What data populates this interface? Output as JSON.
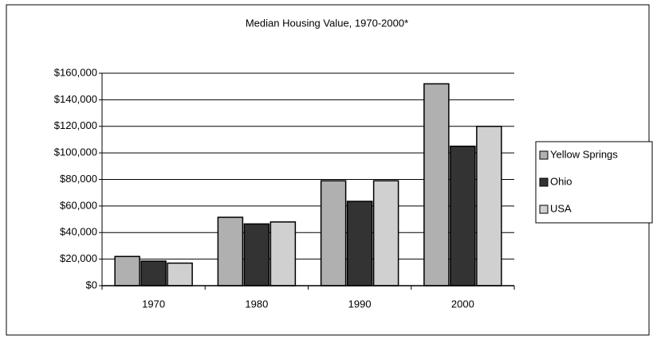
{
  "chart_data": {
    "type": "bar",
    "title": "Median Housing Value, 1970-2000*",
    "categories": [
      "1970",
      "1980",
      "1990",
      "2000"
    ],
    "series": [
      {
        "name": "Yellow Springs",
        "color": "#b0b0b0",
        "values": [
          22000,
          51500,
          79000,
          152000
        ]
      },
      {
        "name": "Ohio",
        "color": "#333333",
        "values": [
          18500,
          46500,
          63500,
          105000
        ]
      },
      {
        "name": "USA",
        "color": "#d0d0d0",
        "values": [
          17000,
          48000,
          79000,
          120000
        ]
      }
    ],
    "ylim": [
      0,
      160000
    ],
    "yticks": [
      {
        "value": 0,
        "label": "$0"
      },
      {
        "value": 20000,
        "label": "$20,000"
      },
      {
        "value": 40000,
        "label": "$40,000"
      },
      {
        "value": 60000,
        "label": "$60,000"
      },
      {
        "value": 80000,
        "label": "$80,000"
      },
      {
        "value": 100000,
        "label": "$100,000"
      },
      {
        "value": 120000,
        "label": "$120,000"
      },
      {
        "value": 140000,
        "label": "$140,000"
      },
      {
        "value": 160000,
        "label": "$160,000"
      }
    ],
    "grid": true,
    "legend": "right"
  }
}
